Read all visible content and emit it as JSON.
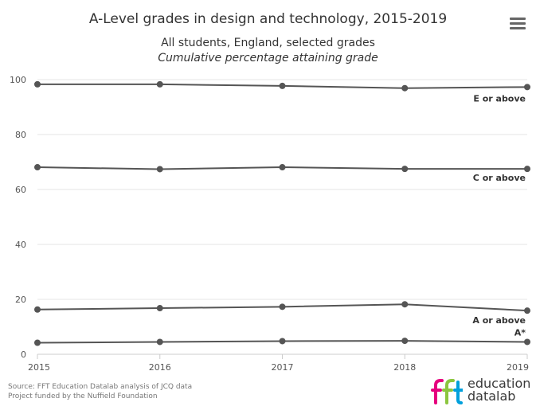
{
  "header": {
    "title": "A-Level grades in design and technology, 2015-2019",
    "subtitle_line1": "All students, England, selected grades",
    "subtitle_line2": "Cumulative percentage attaining grade",
    "menu_icon": "hamburger-menu-icon"
  },
  "chart_data": {
    "type": "line",
    "title": "A-Level grades in design and technology, 2015-2019",
    "subtitle": "All students, England, selected grades — Cumulative percentage attaining grade",
    "x": [
      2015,
      2016,
      2017,
      2018,
      2019
    ],
    "x_tick_labels": [
      "2015",
      "2016",
      "2017",
      "2018",
      "2019"
    ],
    "y_tick_labels": [
      "0",
      "20",
      "40",
      "60",
      "80",
      "100"
    ],
    "ylim": [
      0,
      100
    ],
    "y_ticks": [
      0,
      20,
      40,
      60,
      80,
      100
    ],
    "grid": "horizontal",
    "legend": "none",
    "series": [
      {
        "name": "E or above",
        "values": [
          98.3,
          98.3,
          97.7,
          96.9,
          97.3
        ]
      },
      {
        "name": "C or above",
        "values": [
          68.1,
          67.4,
          68.1,
          67.5,
          67.5
        ]
      },
      {
        "name": "A or above",
        "values": [
          16.3,
          16.8,
          17.3,
          18.2,
          15.9
        ]
      },
      {
        "name": "A*",
        "values": [
          4.2,
          4.5,
          4.8,
          4.9,
          4.5
        ]
      }
    ],
    "line_color": "#555555",
    "grid_color": "#e6e6e6"
  },
  "credits": {
    "line1": "Source: FFT Education Datalab analysis of JCQ data",
    "line2": "Project funded by the Nuffield Foundation"
  },
  "logo": {
    "mark": "fft",
    "word1": "education",
    "word2": "datalab",
    "colors": [
      "#e6007e",
      "#8cc63f",
      "#00a0dc"
    ]
  }
}
